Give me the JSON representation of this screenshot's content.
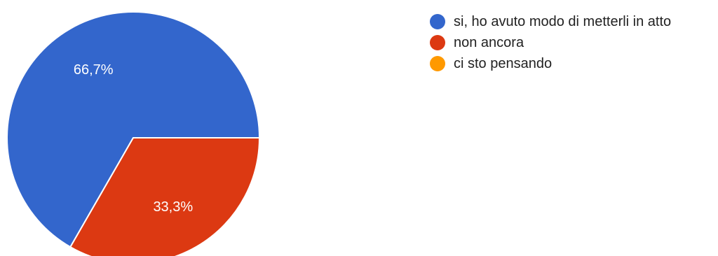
{
  "chart_data": {
    "type": "pie",
    "categories": [
      "si, ho avuto modo di metterli in atto",
      "non ancora",
      "ci sto pensando"
    ],
    "values": [
      66.7,
      33.3,
      0
    ],
    "labels": [
      "66,7%",
      "33,3%",
      ""
    ],
    "colors": [
      "#3366cc",
      "#dc3912",
      "#ff9900"
    ],
    "legend_position": "right"
  },
  "legend": {
    "items": [
      {
        "label": "si, ho avuto modo di metterli in atto",
        "color": "#3366cc"
      },
      {
        "label": "non ancora",
        "color": "#dc3912"
      },
      {
        "label": "ci sto pensando",
        "color": "#ff9900"
      }
    ]
  }
}
